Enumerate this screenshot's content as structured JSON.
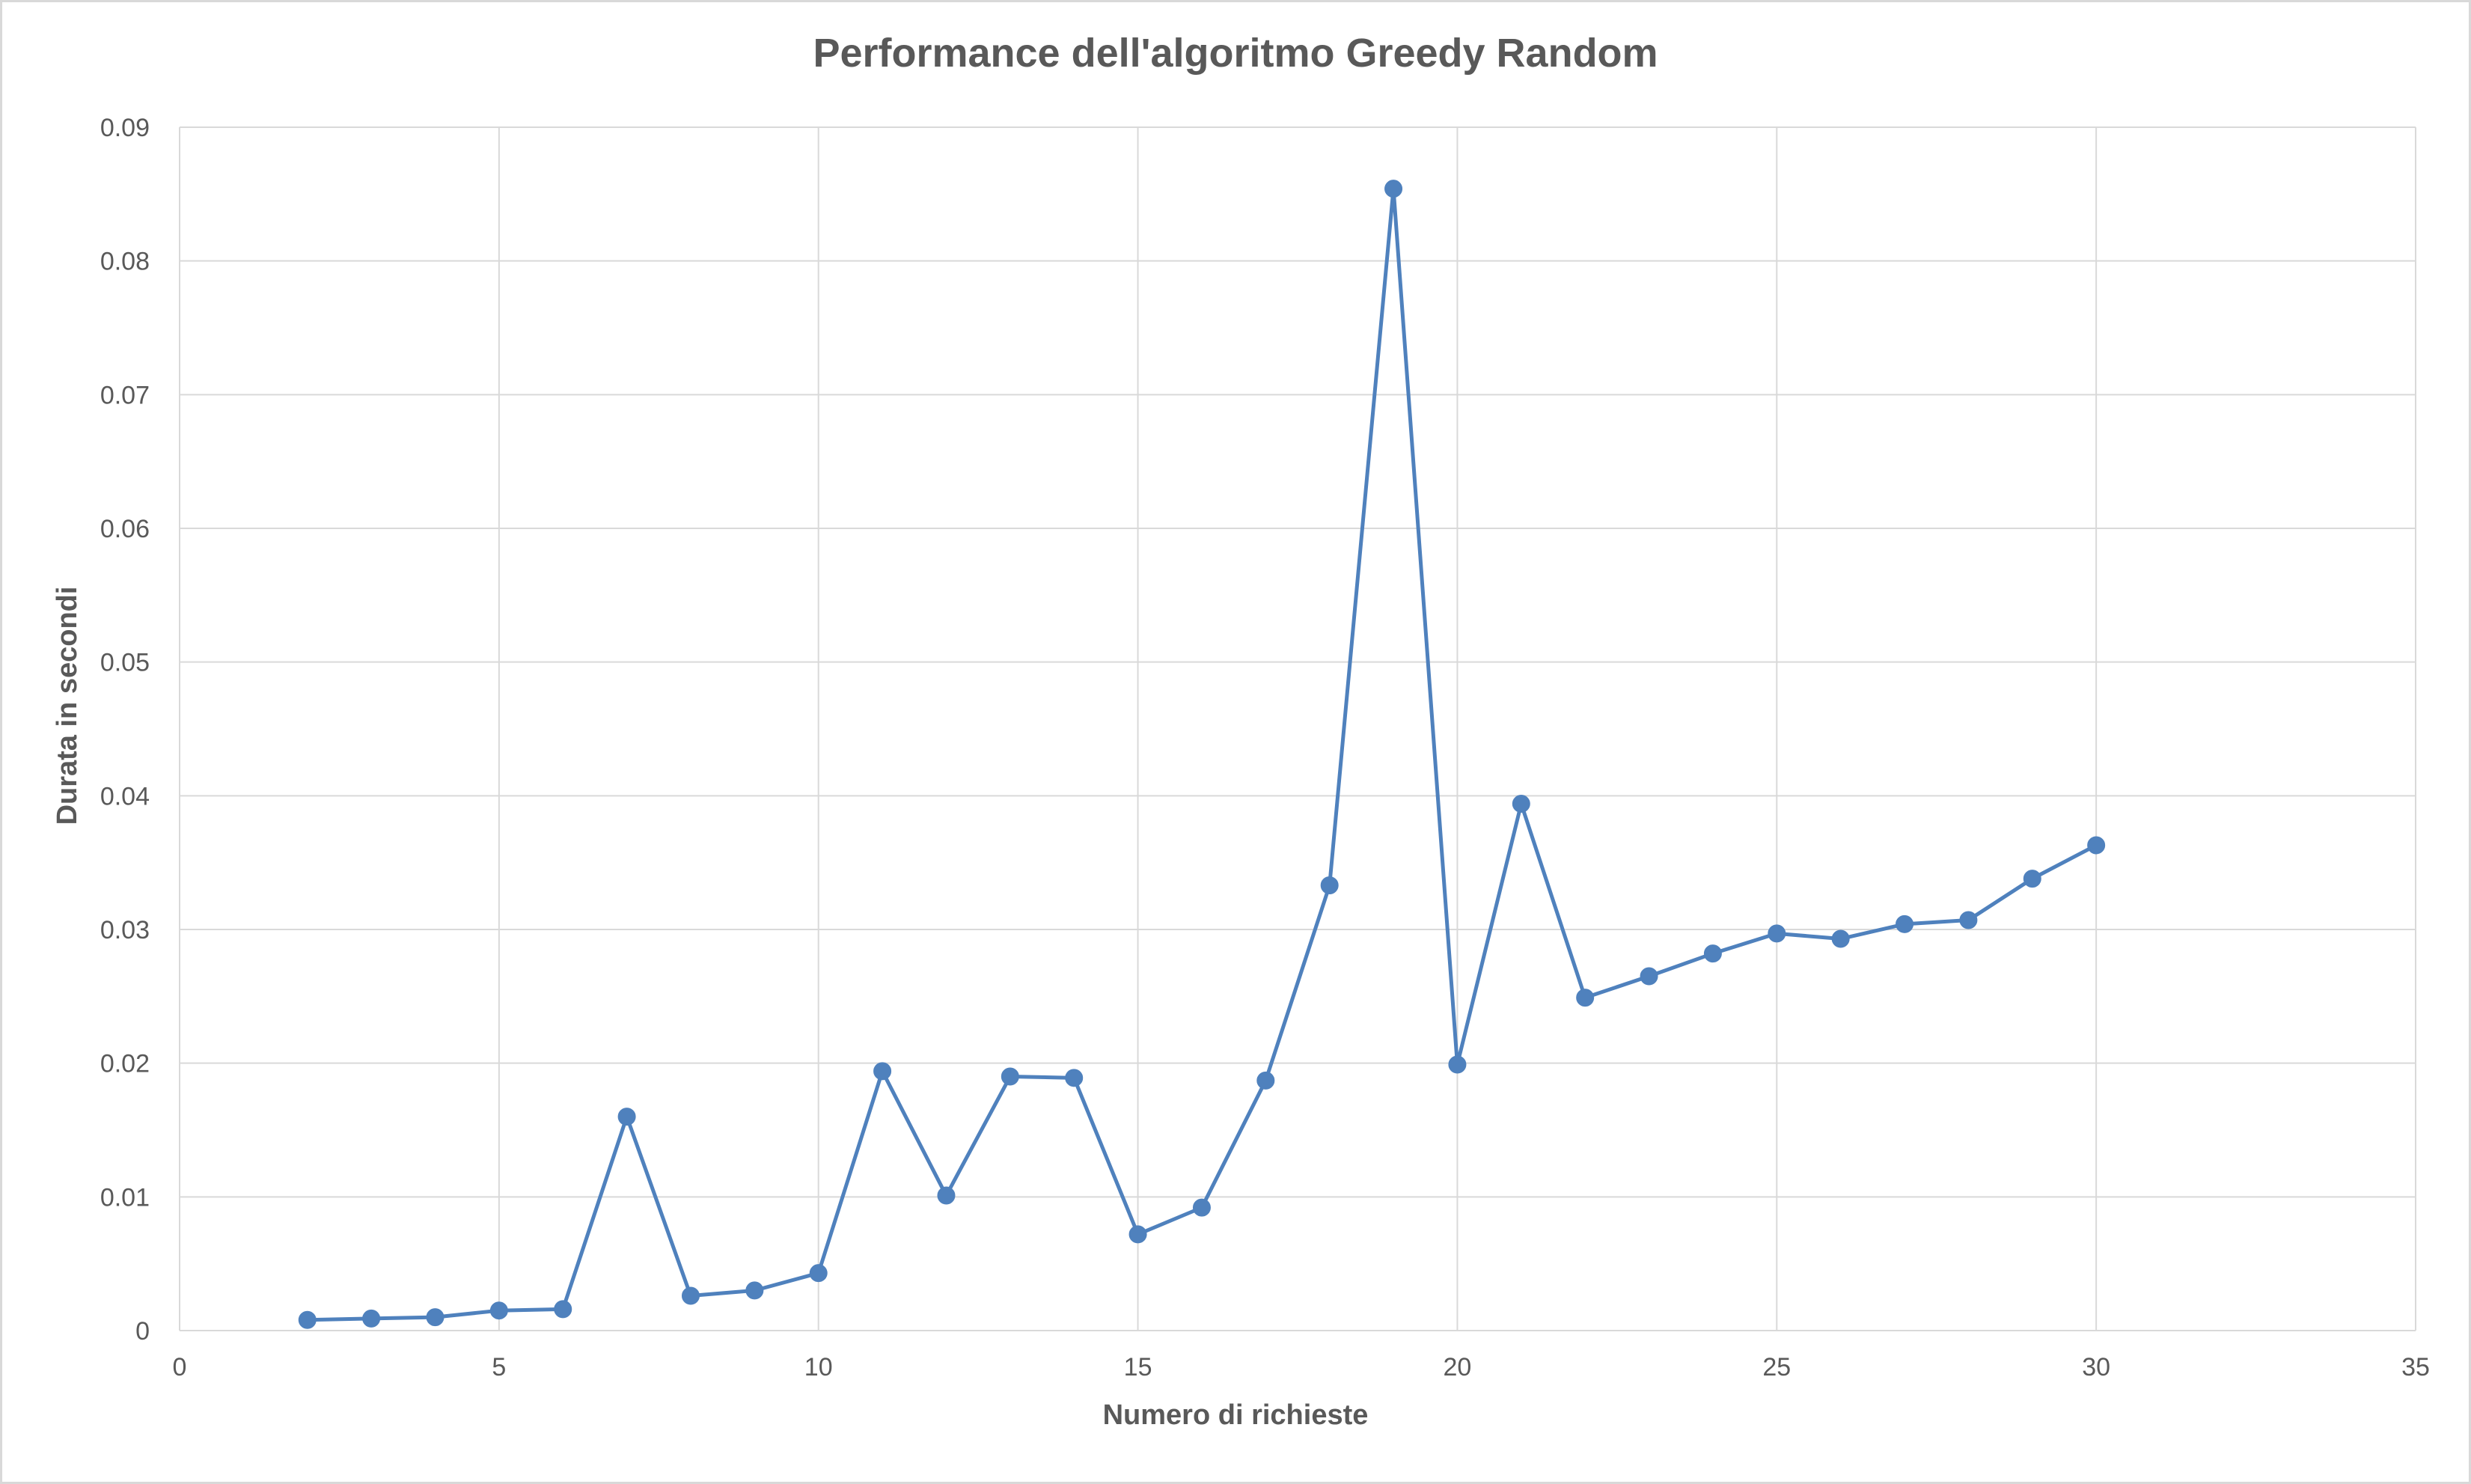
{
  "chart_data": {
    "type": "scatter",
    "title": "Performance dell'algoritmo Greedy Random",
    "xlabel": "Numero di richieste",
    "ylabel": "Durata in secondi",
    "xlim": [
      0,
      35
    ],
    "ylim": [
      0,
      0.09
    ],
    "x_ticks": [
      0,
      5,
      10,
      15,
      20,
      25,
      30,
      35
    ],
    "y_ticks": [
      0,
      0.01,
      0.02,
      0.03,
      0.04,
      0.05,
      0.06,
      0.07,
      0.08,
      0.09
    ],
    "x_tick_labels": [
      "0",
      "5",
      "10",
      "15",
      "20",
      "25",
      "30",
      "35"
    ],
    "y_tick_labels": [
      "0",
      "0.01",
      "0.02",
      "0.03",
      "0.04",
      "0.05",
      "0.06",
      "0.07",
      "0.08",
      "0.09"
    ],
    "grid": true,
    "legend": "none",
    "series": [
      {
        "color": "#4f81bd",
        "marker": "circle",
        "line": "straight",
        "x": [
          2,
          3,
          4,
          5,
          6,
          7,
          8,
          9,
          10,
          11,
          12,
          13,
          14,
          15,
          16,
          17,
          18,
          19,
          20,
          21,
          22,
          23,
          24,
          25,
          26,
          27,
          28,
          29,
          30
        ],
        "y": [
          0.0008,
          0.0009,
          0.001,
          0.0015,
          0.0016,
          0.016,
          0.0026,
          0.003,
          0.0043,
          0.0194,
          0.0101,
          0.019,
          0.0189,
          0.0072,
          0.0092,
          0.0187,
          0.0333,
          0.0854,
          0.0199,
          0.0394,
          0.0249,
          0.0265,
          0.0282,
          0.0297,
          0.0293,
          0.0304,
          0.0307,
          0.0338,
          0.0363
        ]
      }
    ]
  }
}
